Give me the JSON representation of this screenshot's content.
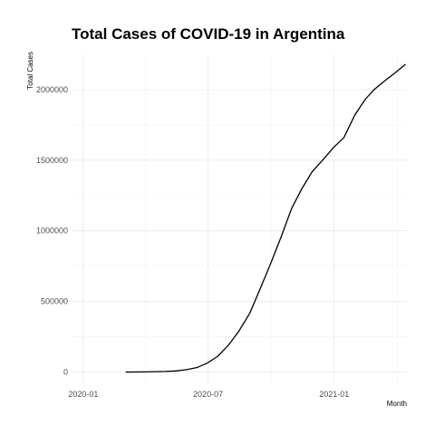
{
  "chart_data": {
    "type": "line",
    "title": "Total Cases of COVID-19 in Argentina",
    "xlabel": "Month",
    "ylabel": "Total Cases",
    "x_ticks": [
      "2020-01",
      "2020-07",
      "2021-01"
    ],
    "y_ticks": [
      "0",
      "500000",
      "1000000",
      "1500000",
      "2000000"
    ],
    "y_tick_values": [
      0,
      500000,
      1000000,
      1500000,
      2000000
    ],
    "xlim": [
      "2019-12-15",
      "2021-04-17"
    ],
    "ylim": [
      -80000,
      2250000
    ],
    "grid": true,
    "series": [
      {
        "x": [
          "2020-03-03",
          "2020-03-31",
          "2020-04-30",
          "2020-05-15",
          "2020-05-31",
          "2020-06-15",
          "2020-06-30",
          "2020-07-15",
          "2020-07-31",
          "2020-08-15",
          "2020-08-31",
          "2020-09-15",
          "2020-09-30",
          "2020-10-15",
          "2020-10-31",
          "2020-11-15",
          "2020-11-30",
          "2020-12-15",
          "2020-12-31",
          "2021-01-15",
          "2021-01-31",
          "2021-02-15",
          "2021-02-28",
          "2021-03-15",
          "2021-03-31",
          "2021-04-15"
        ],
        "y": [
          1,
          1000,
          4500,
          8000,
          17000,
          32000,
          64000,
          111000,
          192000,
          290000,
          418000,
          590000,
          765000,
          950000,
          1160000,
          1300000,
          1420000,
          1500000,
          1590000,
          1660000,
          1820000,
          1930000,
          2000000,
          2060000,
          2120000,
          2180000
        ]
      }
    ]
  }
}
